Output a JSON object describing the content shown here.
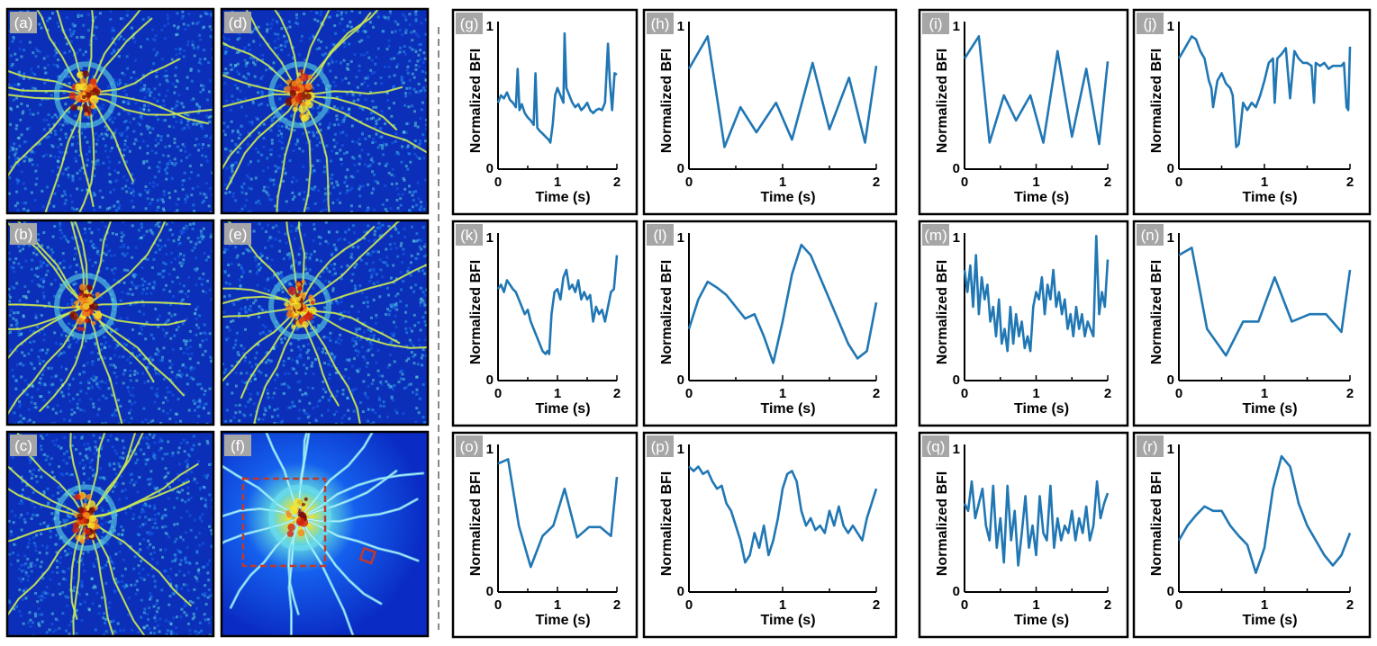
{
  "figure": {
    "divider_color": "#888888",
    "line_color": "#2077b4",
    "tag_bg": "#a6a6a6"
  },
  "images": [
    {
      "label": "(a)",
      "kind": "speckle",
      "seed": 11
    },
    {
      "label": "(b)",
      "kind": "speckle",
      "seed": 23
    },
    {
      "label": "(c)",
      "kind": "speckle",
      "seed": 37
    },
    {
      "label": "(d)",
      "kind": "speckle",
      "seed": 41
    },
    {
      "label": "(e)",
      "kind": "speckle",
      "seed": 53
    },
    {
      "label": "(f)",
      "kind": "smooth",
      "seed": 67,
      "roi_color": "#c0392b"
    }
  ],
  "chart_data": [
    {
      "label": "(g)",
      "type": "line",
      "xlabel": "Time (s)",
      "ylabel": "Normalized BFI",
      "xlim": [
        0,
        2
      ],
      "ylim": [
        0,
        1
      ],
      "xticks": [
        "0",
        "1",
        "2"
      ],
      "yticks": [
        "0",
        "1"
      ],
      "x": [
        0,
        0.05,
        0.1,
        0.15,
        0.2,
        0.25,
        0.3,
        0.33,
        0.36,
        0.4,
        0.45,
        0.5,
        0.55,
        0.6,
        0.63,
        0.66,
        0.7,
        0.75,
        0.8,
        0.85,
        0.88,
        0.92,
        0.96,
        1.0,
        1.05,
        1.1,
        1.12,
        1.15,
        1.2,
        1.25,
        1.3,
        1.35,
        1.4,
        1.45,
        1.5,
        1.55,
        1.6,
        1.65,
        1.7,
        1.75,
        1.8,
        1.85,
        1.88,
        1.92,
        1.96,
        2.0
      ],
      "y": [
        0.45,
        0.5,
        0.48,
        0.52,
        0.47,
        0.45,
        0.42,
        0.68,
        0.4,
        0.44,
        0.38,
        0.35,
        0.33,
        0.3,
        0.65,
        0.28,
        0.26,
        0.24,
        0.22,
        0.2,
        0.18,
        0.3,
        0.5,
        0.55,
        0.5,
        0.45,
        0.92,
        0.55,
        0.5,
        0.45,
        0.42,
        0.44,
        0.4,
        0.42,
        0.45,
        0.4,
        0.38,
        0.4,
        0.41,
        0.4,
        0.45,
        0.85,
        0.6,
        0.4,
        0.65,
        0.64
      ]
    },
    {
      "label": "(h)",
      "type": "line",
      "xlabel": "Time (s)",
      "ylabel": "Normalized BFI",
      "xlim": [
        0,
        2
      ],
      "ylim": [
        0,
        1
      ],
      "xticks": [
        "0",
        "1",
        "2"
      ],
      "yticks": [
        "0",
        "1"
      ],
      "x": [
        0,
        0.2,
        0.38,
        0.55,
        0.72,
        0.93,
        1.1,
        1.32,
        1.5,
        1.71,
        1.88,
        2.0
      ],
      "y": [
        0.68,
        0.9,
        0.15,
        0.42,
        0.25,
        0.45,
        0.2,
        0.72,
        0.27,
        0.62,
        0.18,
        0.7
      ]
    },
    {
      "label": "(i)",
      "type": "line",
      "xlabel": "Time (s)",
      "ylabel": "Normalized BFI",
      "xlim": [
        0,
        2
      ],
      "ylim": [
        0,
        1
      ],
      "xticks": [
        "0",
        "1",
        "2"
      ],
      "yticks": [
        "0",
        "1"
      ],
      "x": [
        0,
        0.2,
        0.35,
        0.55,
        0.72,
        0.92,
        1.1,
        1.3,
        1.5,
        1.7,
        1.88,
        2.0
      ],
      "y": [
        0.75,
        0.9,
        0.18,
        0.5,
        0.33,
        0.5,
        0.18,
        0.8,
        0.22,
        0.68,
        0.17,
        0.73
      ]
    },
    {
      "label": "(j)",
      "type": "line",
      "xlabel": "Time (s)",
      "ylabel": "Normalized BFI",
      "xlim": [
        0,
        2
      ],
      "ylim": [
        0,
        1
      ],
      "xticks": [
        "0",
        "1",
        "2"
      ],
      "yticks": [
        "0",
        "1"
      ],
      "x": [
        0,
        0.05,
        0.1,
        0.15,
        0.2,
        0.25,
        0.3,
        0.35,
        0.38,
        0.4,
        0.45,
        0.5,
        0.55,
        0.6,
        0.63,
        0.67,
        0.7,
        0.75,
        0.8,
        0.85,
        0.9,
        0.95,
        1.0,
        1.05,
        1.1,
        1.12,
        1.15,
        1.2,
        1.25,
        1.3,
        1.35,
        1.4,
        1.45,
        1.5,
        1.55,
        1.58,
        1.6,
        1.65,
        1.7,
        1.75,
        1.8,
        1.85,
        1.9,
        1.93,
        1.96,
        1.98,
        2.0
      ],
      "y": [
        0.75,
        0.8,
        0.85,
        0.9,
        0.88,
        0.8,
        0.75,
        0.6,
        0.55,
        0.42,
        0.6,
        0.65,
        0.58,
        0.55,
        0.5,
        0.15,
        0.17,
        0.45,
        0.4,
        0.45,
        0.42,
        0.5,
        0.6,
        0.72,
        0.75,
        0.45,
        0.75,
        0.78,
        0.82,
        0.48,
        0.8,
        0.75,
        0.72,
        0.72,
        0.7,
        0.45,
        0.72,
        0.7,
        0.72,
        0.68,
        0.7,
        0.7,
        0.7,
        0.72,
        0.42,
        0.4,
        0.83
      ]
    },
    {
      "label": "(k)",
      "type": "line",
      "xlabel": "Time (s)",
      "ylabel": "Normalized BFI",
      "xlim": [
        0,
        2
      ],
      "ylim": [
        0,
        1
      ],
      "xticks": [
        "0",
        "1",
        "2"
      ],
      "yticks": [
        "0",
        "1"
      ],
      "x": [
        0,
        0.05,
        0.1,
        0.15,
        0.2,
        0.25,
        0.3,
        0.35,
        0.4,
        0.45,
        0.5,
        0.55,
        0.6,
        0.65,
        0.7,
        0.75,
        0.8,
        0.83,
        0.86,
        0.9,
        0.95,
        1.0,
        1.05,
        1.1,
        1.15,
        1.2,
        1.25,
        1.3,
        1.35,
        1.4,
        1.45,
        1.5,
        1.55,
        1.6,
        1.65,
        1.7,
        1.75,
        1.8,
        1.85,
        1.9,
        1.95,
        2.0
      ],
      "y": [
        0.62,
        0.65,
        0.6,
        0.68,
        0.65,
        0.62,
        0.6,
        0.55,
        0.5,
        0.45,
        0.48,
        0.4,
        0.35,
        0.3,
        0.25,
        0.2,
        0.18,
        0.2,
        0.18,
        0.45,
        0.6,
        0.62,
        0.55,
        0.7,
        0.75,
        0.62,
        0.65,
        0.6,
        0.68,
        0.55,
        0.6,
        0.55,
        0.58,
        0.4,
        0.5,
        0.45,
        0.48,
        0.4,
        0.5,
        0.6,
        0.62,
        0.85
      ]
    },
    {
      "label": "(l)",
      "type": "line",
      "xlabel": "Time (s)",
      "ylabel": "Normalized BFI",
      "xlim": [
        0,
        2
      ],
      "ylim": [
        0,
        1
      ],
      "xticks": [
        "0",
        "1",
        "2"
      ],
      "yticks": [
        "0",
        "1"
      ],
      "x": [
        0,
        0.1,
        0.2,
        0.3,
        0.4,
        0.5,
        0.6,
        0.7,
        0.8,
        0.9,
        1.0,
        1.1,
        1.2,
        1.3,
        1.4,
        1.5,
        1.6,
        1.7,
        1.8,
        1.9,
        2.0
      ],
      "y": [
        0.35,
        0.55,
        0.67,
        0.63,
        0.58,
        0.5,
        0.42,
        0.45,
        0.3,
        0.12,
        0.4,
        0.72,
        0.92,
        0.85,
        0.7,
        0.55,
        0.4,
        0.25,
        0.15,
        0.2,
        0.53
      ]
    },
    {
      "label": "(m)",
      "type": "line",
      "xlabel": "Time (s)",
      "ylabel": "Normalized BFI",
      "xlim": [
        0,
        2
      ],
      "ylim": [
        0,
        1
      ],
      "xticks": [
        "0",
        "1",
        "2"
      ],
      "yticks": [
        "0",
        "1"
      ],
      "x": [
        0,
        0.04,
        0.08,
        0.12,
        0.16,
        0.2,
        0.24,
        0.28,
        0.32,
        0.36,
        0.4,
        0.44,
        0.48,
        0.52,
        0.56,
        0.6,
        0.64,
        0.68,
        0.72,
        0.76,
        0.8,
        0.84,
        0.88,
        0.92,
        0.96,
        1.0,
        1.04,
        1.08,
        1.12,
        1.16,
        1.2,
        1.24,
        1.28,
        1.32,
        1.36,
        1.4,
        1.44,
        1.48,
        1.52,
        1.56,
        1.6,
        1.64,
        1.68,
        1.72,
        1.76,
        1.8,
        1.84,
        1.88,
        1.92,
        1.96,
        2.0
      ],
      "y": [
        0.75,
        0.6,
        0.78,
        0.5,
        0.85,
        0.45,
        0.7,
        0.55,
        0.65,
        0.4,
        0.5,
        0.3,
        0.55,
        0.25,
        0.35,
        0.2,
        0.5,
        0.25,
        0.45,
        0.3,
        0.4,
        0.22,
        0.3,
        0.2,
        0.5,
        0.6,
        0.55,
        0.7,
        0.45,
        0.65,
        0.55,
        0.75,
        0.5,
        0.6,
        0.45,
        0.55,
        0.35,
        0.45,
        0.3,
        0.5,
        0.35,
        0.45,
        0.3,
        0.4,
        0.35,
        0.3,
        0.98,
        0.45,
        0.6,
        0.5,
        0.82
      ]
    },
    {
      "label": "(n)",
      "type": "line",
      "xlabel": "Time (s)",
      "ylabel": "Normalized BFI",
      "xlim": [
        0,
        2
      ],
      "ylim": [
        0,
        1
      ],
      "xticks": [
        "0",
        "1",
        "2"
      ],
      "yticks": [
        "0",
        "1"
      ],
      "x": [
        0,
        0.15,
        0.33,
        0.55,
        0.75,
        0.93,
        1.12,
        1.32,
        1.53,
        1.72,
        1.9,
        2.0
      ],
      "y": [
        0.85,
        0.9,
        0.35,
        0.17,
        0.4,
        0.4,
        0.7,
        0.4,
        0.45,
        0.45,
        0.33,
        0.75
      ]
    },
    {
      "label": "(o)",
      "type": "line",
      "xlabel": "Time (s)",
      "ylabel": "Normalized BFI",
      "xlim": [
        0,
        2
      ],
      "ylim": [
        0,
        1
      ],
      "xticks": [
        "0",
        "1",
        "2"
      ],
      "yticks": [
        "0",
        "1"
      ],
      "x": [
        0,
        0.17,
        0.35,
        0.55,
        0.75,
        0.93,
        1.12,
        1.33,
        1.53,
        1.72,
        1.9,
        2.0
      ],
      "y": [
        0.87,
        0.9,
        0.45,
        0.17,
        0.38,
        0.45,
        0.7,
        0.37,
        0.44,
        0.44,
        0.38,
        0.78
      ]
    },
    {
      "label": "(p)",
      "type": "line",
      "xlabel": "Time (s)",
      "ylabel": "Normalized BFI",
      "xlim": [
        0,
        2
      ],
      "ylim": [
        0,
        1
      ],
      "xticks": [
        "0",
        "1",
        "2"
      ],
      "yticks": [
        "0",
        "1"
      ],
      "x": [
        0,
        0.05,
        0.1,
        0.15,
        0.2,
        0.25,
        0.3,
        0.35,
        0.4,
        0.45,
        0.5,
        0.55,
        0.6,
        0.65,
        0.7,
        0.75,
        0.8,
        0.85,
        0.9,
        0.95,
        1.0,
        1.05,
        1.1,
        1.15,
        1.2,
        1.25,
        1.3,
        1.35,
        1.4,
        1.45,
        1.5,
        1.55,
        1.6,
        1.65,
        1.7,
        1.75,
        1.8,
        1.85,
        1.9,
        1.95,
        2.0
      ],
      "y": [
        0.85,
        0.82,
        0.85,
        0.8,
        0.82,
        0.75,
        0.7,
        0.72,
        0.6,
        0.55,
        0.45,
        0.35,
        0.2,
        0.25,
        0.4,
        0.3,
        0.45,
        0.25,
        0.35,
        0.5,
        0.7,
        0.8,
        0.82,
        0.75,
        0.55,
        0.45,
        0.5,
        0.42,
        0.45,
        0.4,
        0.55,
        0.45,
        0.58,
        0.45,
        0.4,
        0.45,
        0.4,
        0.35,
        0.5,
        0.6,
        0.7
      ]
    },
    {
      "label": "(q)",
      "type": "line",
      "xlabel": "Time (s)",
      "ylabel": "Normalized BFI",
      "xlim": [
        0,
        2
      ],
      "ylim": [
        0,
        1
      ],
      "xticks": [
        "0",
        "1",
        "2"
      ],
      "yticks": [
        "0",
        "1"
      ],
      "x": [
        0,
        0.05,
        0.1,
        0.15,
        0.2,
        0.25,
        0.3,
        0.35,
        0.4,
        0.45,
        0.5,
        0.55,
        0.6,
        0.65,
        0.7,
        0.75,
        0.8,
        0.85,
        0.9,
        0.95,
        1.0,
        1.05,
        1.1,
        1.15,
        1.2,
        1.25,
        1.3,
        1.35,
        1.4,
        1.45,
        1.5,
        1.55,
        1.6,
        1.65,
        1.7,
        1.75,
        1.8,
        1.85,
        1.9,
        1.95,
        2.0
      ],
      "y": [
        0.6,
        0.55,
        0.75,
        0.5,
        0.6,
        0.7,
        0.45,
        0.35,
        0.72,
        0.3,
        0.5,
        0.2,
        0.72,
        0.35,
        0.55,
        0.18,
        0.4,
        0.65,
        0.3,
        0.45,
        0.25,
        0.65,
        0.4,
        0.35,
        0.72,
        0.3,
        0.5,
        0.35,
        0.45,
        0.4,
        0.55,
        0.35,
        0.5,
        0.4,
        0.58,
        0.35,
        0.45,
        0.75,
        0.5,
        0.6,
        0.67
      ]
    },
    {
      "label": "(r)",
      "type": "line",
      "xlabel": "Time (s)",
      "ylabel": "Normalized BFI",
      "xlim": [
        0,
        2
      ],
      "ylim": [
        0,
        1
      ],
      "xticks": [
        "0",
        "1",
        "2"
      ],
      "yticks": [
        "0",
        "1"
      ],
      "x": [
        0,
        0.1,
        0.2,
        0.3,
        0.4,
        0.5,
        0.6,
        0.7,
        0.8,
        0.9,
        1.0,
        1.1,
        1.2,
        1.3,
        1.4,
        1.5,
        1.6,
        1.7,
        1.8,
        1.9,
        2.0
      ],
      "y": [
        0.35,
        0.45,
        0.52,
        0.58,
        0.55,
        0.55,
        0.45,
        0.38,
        0.32,
        0.13,
        0.3,
        0.7,
        0.92,
        0.85,
        0.6,
        0.45,
        0.35,
        0.25,
        0.18,
        0.25,
        0.4
      ]
    }
  ]
}
